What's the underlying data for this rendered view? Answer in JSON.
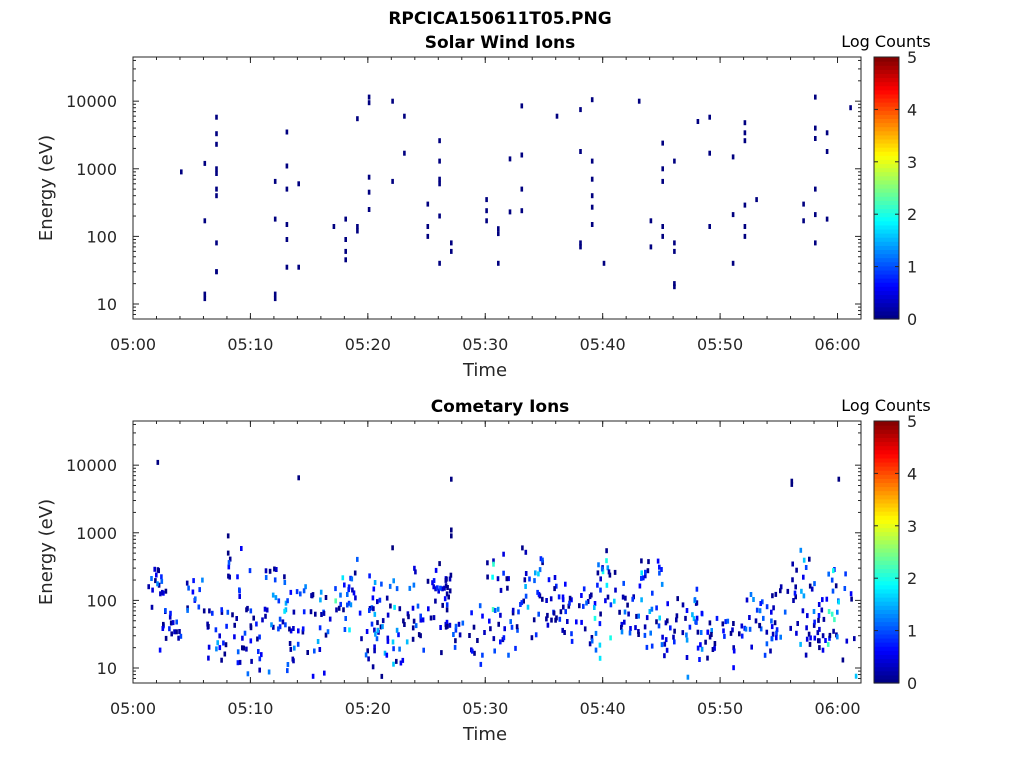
{
  "figure_title": "RPCICA150611T05.PNG",
  "chart_data": [
    {
      "type": "heatmap",
      "title": "Solar Wind Ions",
      "xlabel": "Time",
      "ylabel": "Energy (eV)",
      "y_scale": "log",
      "xlim": [
        "05:00",
        "06:02"
      ],
      "ylim": [
        6,
        45000
      ],
      "x_tick_labels": [
        "05:00",
        "05:10",
        "05:20",
        "05:30",
        "05:40",
        "05:50",
        "06:00"
      ],
      "y_tick_labels": [
        "10",
        "100",
        "1000",
        "10000"
      ],
      "colorbar": {
        "label": "Log Counts",
        "min": 0,
        "max": 5,
        "tick_labels": [
          "0",
          "1",
          "2",
          "3",
          "4",
          "5"
        ],
        "colormap": "jet"
      },
      "cells": [
        [
          "05:04",
          900,
          0
        ],
        [
          "05:06",
          1200,
          0
        ],
        [
          "05:06",
          170,
          0
        ],
        [
          "05:06",
          12,
          0
        ],
        [
          "05:06",
          14,
          0
        ],
        [
          "05:07",
          400,
          0
        ],
        [
          "05:07",
          80,
          0
        ],
        [
          "05:07",
          30,
          0
        ],
        [
          "05:07",
          1000,
          0
        ],
        [
          "05:07",
          5800,
          0
        ],
        [
          "05:07",
          3300,
          0
        ],
        [
          "05:07",
          2300,
          0
        ],
        [
          "05:07",
          850,
          0
        ],
        [
          "05:07",
          500,
          0
        ],
        [
          "05:07",
          30,
          0
        ],
        [
          "05:12",
          650,
          0
        ],
        [
          "05:12",
          180,
          0
        ],
        [
          "05:12",
          12,
          0
        ],
        [
          "05:12",
          14,
          0
        ],
        [
          "05:13",
          3500,
          0
        ],
        [
          "05:13",
          500,
          0
        ],
        [
          "05:13",
          150,
          0
        ],
        [
          "05:13",
          90,
          0
        ],
        [
          "05:13",
          35,
          0
        ],
        [
          "05:13",
          1100,
          0
        ],
        [
          "05:14",
          600,
          0
        ],
        [
          "05:14",
          35,
          0
        ],
        [
          "05:17",
          140,
          0
        ],
        [
          "05:18",
          180,
          0
        ],
        [
          "05:18",
          60,
          0
        ],
        [
          "05:18",
          45,
          0
        ],
        [
          "05:18",
          90,
          0
        ],
        [
          "05:19",
          140,
          0
        ],
        [
          "05:19",
          120,
          0
        ],
        [
          "05:19",
          5500,
          0
        ],
        [
          "05:20",
          11500,
          0
        ],
        [
          "05:20",
          9500,
          0
        ],
        [
          "05:20",
          250,
          0
        ],
        [
          "05:20",
          750,
          0
        ],
        [
          "05:20",
          450,
          0
        ],
        [
          "05:22",
          10000,
          0
        ],
        [
          "05:22",
          650,
          0
        ],
        [
          "05:23",
          1700,
          0
        ],
        [
          "05:23",
          6000,
          0
        ],
        [
          "05:25",
          140,
          0
        ],
        [
          "05:25",
          300,
          0
        ],
        [
          "05:25",
          100,
          0
        ],
        [
          "05:26",
          700,
          0
        ],
        [
          "05:26",
          1300,
          0
        ],
        [
          "05:26",
          2600,
          0
        ],
        [
          "05:26",
          600,
          0
        ],
        [
          "05:26",
          200,
          0
        ],
        [
          "05:26",
          40,
          0
        ],
        [
          "05:27",
          80,
          0
        ],
        [
          "05:27",
          60,
          0
        ],
        [
          "05:30",
          170,
          0
        ],
        [
          "05:30",
          350,
          0
        ],
        [
          "05:30",
          240,
          0
        ],
        [
          "05:31",
          110,
          0
        ],
        [
          "05:31",
          130,
          0
        ],
        [
          "05:31",
          40,
          0
        ],
        [
          "05:32",
          230,
          0
        ],
        [
          "05:32",
          1400,
          0
        ],
        [
          "05:33",
          1600,
          0
        ],
        [
          "05:33",
          500,
          0
        ],
        [
          "05:33",
          8500,
          0
        ],
        [
          "05:33",
          240,
          0
        ],
        [
          "05:36",
          6000,
          0
        ],
        [
          "05:38",
          7500,
          0
        ],
        [
          "05:38",
          1800,
          0
        ],
        [
          "05:38",
          70,
          0
        ],
        [
          "05:38",
          80,
          0
        ],
        [
          "05:39",
          10500,
          0
        ],
        [
          "05:39",
          1300,
          0
        ],
        [
          "05:39",
          700,
          0
        ],
        [
          "05:39",
          400,
          0
        ],
        [
          "05:39",
          270,
          0
        ],
        [
          "05:39",
          150,
          0
        ],
        [
          "05:40",
          40,
          0
        ],
        [
          "05:43",
          10000,
          0
        ],
        [
          "05:44",
          170,
          0
        ],
        [
          "05:44",
          70,
          0
        ],
        [
          "05:45",
          140,
          0
        ],
        [
          "05:45",
          1000,
          0
        ],
        [
          "05:45",
          2400,
          0
        ],
        [
          "05:45",
          650,
          0
        ],
        [
          "05:45",
          100,
          0
        ],
        [
          "05:46",
          80,
          0
        ],
        [
          "05:46",
          60,
          0
        ],
        [
          "05:46",
          1300,
          0
        ],
        [
          "05:46",
          20,
          0
        ],
        [
          "05:46",
          18,
          0
        ],
        [
          "05:48",
          5000,
          0
        ],
        [
          "05:49",
          5800,
          0
        ],
        [
          "05:49",
          1700,
          0
        ],
        [
          "05:49",
          140,
          0
        ],
        [
          "05:51",
          1500,
          0
        ],
        [
          "05:51",
          210,
          0
        ],
        [
          "05:51",
          40,
          0
        ],
        [
          "05:52",
          3400,
          0
        ],
        [
          "05:52",
          2600,
          0
        ],
        [
          "05:52",
          290,
          0
        ],
        [
          "05:52",
          140,
          0
        ],
        [
          "05:52",
          100,
          0
        ],
        [
          "05:52",
          4800,
          0
        ],
        [
          "05:53",
          350,
          0
        ],
        [
          "05:57",
          300,
          0
        ],
        [
          "05:57",
          170,
          0
        ],
        [
          "05:58",
          2800,
          0
        ],
        [
          "05:58",
          500,
          0
        ],
        [
          "05:58",
          210,
          0
        ],
        [
          "05:58",
          80,
          0
        ],
        [
          "05:58",
          11500,
          0
        ],
        [
          "05:58",
          4000,
          0
        ],
        [
          "05:59",
          1800,
          0
        ],
        [
          "05:59",
          180,
          0
        ],
        [
          "05:59",
          3400,
          0
        ],
        [
          "06:01",
          8000,
          0
        ]
      ]
    },
    {
      "type": "heatmap",
      "title": "Cometary Ions",
      "xlabel": "Time",
      "ylabel": "Energy (eV)",
      "y_scale": "log",
      "xlim": [
        "05:00",
        "06:02"
      ],
      "ylim": [
        6,
        45000
      ],
      "x_tick_labels": [
        "05:00",
        "05:10",
        "05:20",
        "05:30",
        "05:40",
        "05:50",
        "06:00"
      ],
      "y_tick_labels": [
        "10",
        "100",
        "1000",
        "10000"
      ],
      "colorbar": {
        "label": "Log Counts",
        "min": 0,
        "max": 5,
        "tick_labels": [
          "0",
          "1",
          "2",
          "3",
          "4",
          "5"
        ],
        "colormap": "jet"
      },
      "clusters": [
        [
          "05:02",
          150,
          0.4,
          1.5,
          18,
          500
        ],
        [
          "05:03",
          40,
          0.3,
          1.0,
          18,
          300
        ],
        [
          "05:05",
          130,
          0.4,
          1.3,
          12,
          200
        ],
        [
          "05:07",
          30,
          0.4,
          1.5,
          20,
          300
        ],
        [
          "05:09",
          100,
          0.8,
          1.3,
          25,
          900
        ],
        [
          "05:10",
          25,
          0.5,
          1.2,
          15,
          150
        ],
        [
          "05:12",
          80,
          0.8,
          1.8,
          25,
          300
        ],
        [
          "05:14",
          40,
          0.9,
          1.6,
          25,
          250
        ],
        [
          "05:16",
          50,
          0.8,
          1.6,
          20,
          200
        ],
        [
          "05:18",
          100,
          0.5,
          2.5,
          25,
          600
        ],
        [
          "05:20",
          35,
          0.5,
          1.2,
          15,
          150
        ],
        [
          "05:21",
          60,
          0.7,
          1.6,
          25,
          300
        ],
        [
          "05:23",
          60,
          0.9,
          1.8,
          20,
          300
        ],
        [
          "05:24",
          35,
          0.4,
          1.7,
          15,
          100
        ],
        [
          "05:26",
          150,
          0.4,
          1.0,
          30,
          300
        ],
        [
          "05:27",
          35,
          0.3,
          1.2,
          15,
          60
        ],
        [
          "05:29",
          40,
          0.6,
          1.2,
          12,
          100
        ],
        [
          "05:31",
          120,
          0.9,
          2.3,
          20,
          600
        ],
        [
          "05:32",
          35,
          0.5,
          1.3,
          15,
          120
        ],
        [
          "05:34",
          150,
          0.9,
          1.8,
          25,
          600
        ],
        [
          "05:36",
          80,
          0.5,
          1.1,
          25,
          250
        ],
        [
          "05:38",
          60,
          0.5,
          1.2,
          20,
          150
        ],
        [
          "05:40",
          120,
          0.9,
          2.1,
          30,
          600
        ],
        [
          "05:42",
          40,
          0.6,
          1.3,
          20,
          200
        ],
        [
          "05:44",
          120,
          0.8,
          1.8,
          25,
          400
        ],
        [
          "05:45",
          30,
          0.5,
          1.4,
          15,
          100
        ],
        [
          "05:47",
          40,
          0.8,
          1.6,
          20,
          150
        ],
        [
          "05:48",
          35,
          0.5,
          2.2,
          8,
          100
        ],
        [
          "05:49",
          30,
          0.5,
          1.5,
          15,
          200
        ],
        [
          "05:51",
          35,
          0.5,
          1.2,
          15,
          60
        ],
        [
          "05:53",
          70,
          0.6,
          1.4,
          20,
          250
        ],
        [
          "05:55",
          45,
          0.6,
          1.3,
          20,
          200
        ],
        [
          "05:57",
          120,
          0.8,
          1.7,
          25,
          600
        ],
        [
          "05:58",
          30,
          0.3,
          1.0,
          15,
          80
        ],
        [
          "05:59",
          80,
          0.6,
          2.2,
          25,
          300
        ],
        [
          "06:01",
          40,
          0.8,
          1.8,
          8,
          250
        ]
      ],
      "cells": [
        [
          "05:02",
          11000,
          0
        ],
        [
          "05:14",
          6500,
          0
        ],
        [
          "05:27",
          6200,
          0
        ],
        [
          "05:56",
          5200,
          0
        ],
        [
          "05:56",
          5800,
          0
        ],
        [
          "06:00",
          6200,
          0
        ],
        [
          "05:27",
          1100,
          0
        ],
        [
          "05:27",
          900,
          0
        ],
        [
          "05:08",
          900,
          0
        ],
        [
          "05:08",
          500,
          0
        ],
        [
          "05:26",
          350,
          0
        ],
        [
          "05:22",
          600,
          0
        ]
      ]
    }
  ]
}
